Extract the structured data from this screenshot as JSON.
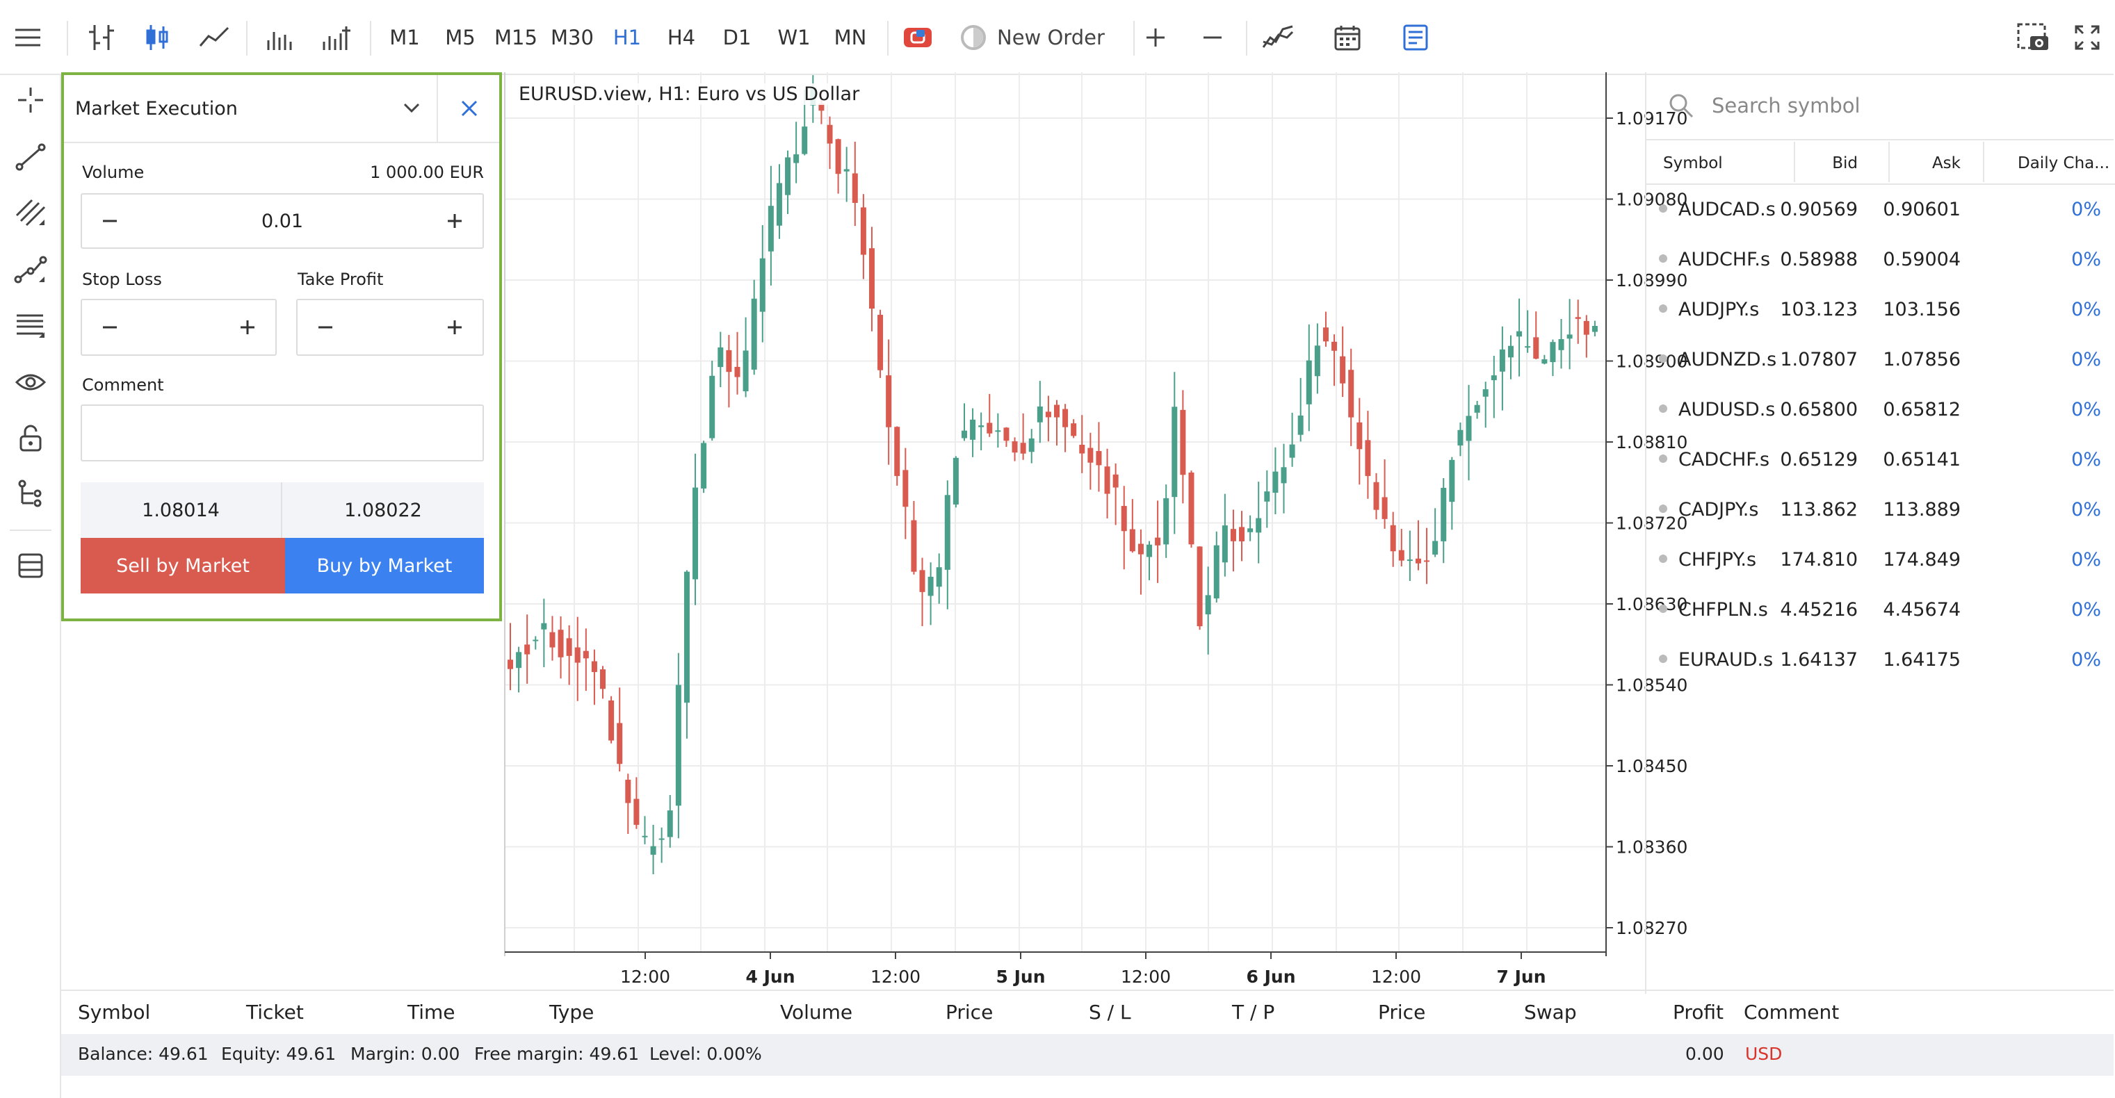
{
  "toolbar": {
    "timeframes": [
      "M1",
      "M5",
      "M15",
      "M30",
      "H1",
      "H4",
      "D1",
      "W1",
      "MN"
    ],
    "active_timeframe": "H1",
    "new_order_label": "New Order"
  },
  "order_panel": {
    "execution_type": "Market Execution",
    "volume_label": "Volume",
    "volume_notional": "1 000.00 EUR",
    "volume_value": "0.01",
    "stop_loss_label": "Stop Loss",
    "take_profit_label": "Take Profit",
    "comment_label": "Comment",
    "bid_price": "1.08014",
    "ask_price": "1.08022",
    "sell_label": "Sell by Market",
    "buy_label": "Buy by Market"
  },
  "chart": {
    "title": "EURUSD.view, H1: Euro vs US Dollar",
    "price_ticks": [
      "1.09170",
      "1.09080",
      "1.08990",
      "1.08900",
      "1.08810",
      "1.08720",
      "1.08630",
      "1.08540",
      "1.08450",
      "1.08360",
      "1.08270"
    ],
    "time_ticks": [
      {
        "label": "12:00",
        "bold": false
      },
      {
        "label": "4 Jun",
        "bold": true
      },
      {
        "label": "12:00",
        "bold": false
      },
      {
        "label": "5 Jun",
        "bold": true
      },
      {
        "label": "12:00",
        "bold": false
      },
      {
        "label": "6 Jun",
        "bold": true
      },
      {
        "label": "12:00",
        "bold": false
      },
      {
        "label": "7 Jun",
        "bold": true
      }
    ],
    "up_color": "#4a9f8b",
    "down_color": "#d95a4f"
  },
  "market_watch": {
    "search_placeholder": "Search symbol",
    "columns": [
      "Symbol",
      "Bid",
      "Ask",
      "Daily Cha..."
    ],
    "rows": [
      {
        "symbol": "AUDCAD.s",
        "bid": "0.90569",
        "ask": "0.90601",
        "change": "0%"
      },
      {
        "symbol": "AUDCHF.s",
        "bid": "0.58988",
        "ask": "0.59004",
        "change": "0%"
      },
      {
        "symbol": "AUDJPY.s",
        "bid": "103.123",
        "ask": "103.156",
        "change": "0%"
      },
      {
        "symbol": "AUDNZD.s",
        "bid": "1.07807",
        "ask": "1.07856",
        "change": "0%"
      },
      {
        "symbol": "AUDUSD.s",
        "bid": "0.65800",
        "ask": "0.65812",
        "change": "0%"
      },
      {
        "symbol": "CADCHF.s",
        "bid": "0.65129",
        "ask": "0.65141",
        "change": "0%"
      },
      {
        "symbol": "CADJPY.s",
        "bid": "113.862",
        "ask": "113.889",
        "change": "0%"
      },
      {
        "symbol": "CHFJPY.s",
        "bid": "174.810",
        "ask": "174.849",
        "change": "0%"
      },
      {
        "symbol": "CHFPLN.s",
        "bid": "4.45216",
        "ask": "4.45674",
        "change": "0%"
      },
      {
        "symbol": "EURAUD.s",
        "bid": "1.64137",
        "ask": "1.64175",
        "change": "0%"
      }
    ]
  },
  "trade_table": {
    "columns": [
      "Symbol",
      "Ticket",
      "Time",
      "Type",
      "Volume",
      "Price",
      "S / L",
      "T / P",
      "Price",
      "Swap",
      "Profit",
      "Comment"
    ],
    "balance": "Balance: 49.61",
    "equity": "Equity: 49.61",
    "margin": "Margin: 0.00",
    "free_margin": "Free margin: 49.61",
    "level": "Level: 0.00%",
    "total_profit": "0.00",
    "currency": "USD"
  }
}
